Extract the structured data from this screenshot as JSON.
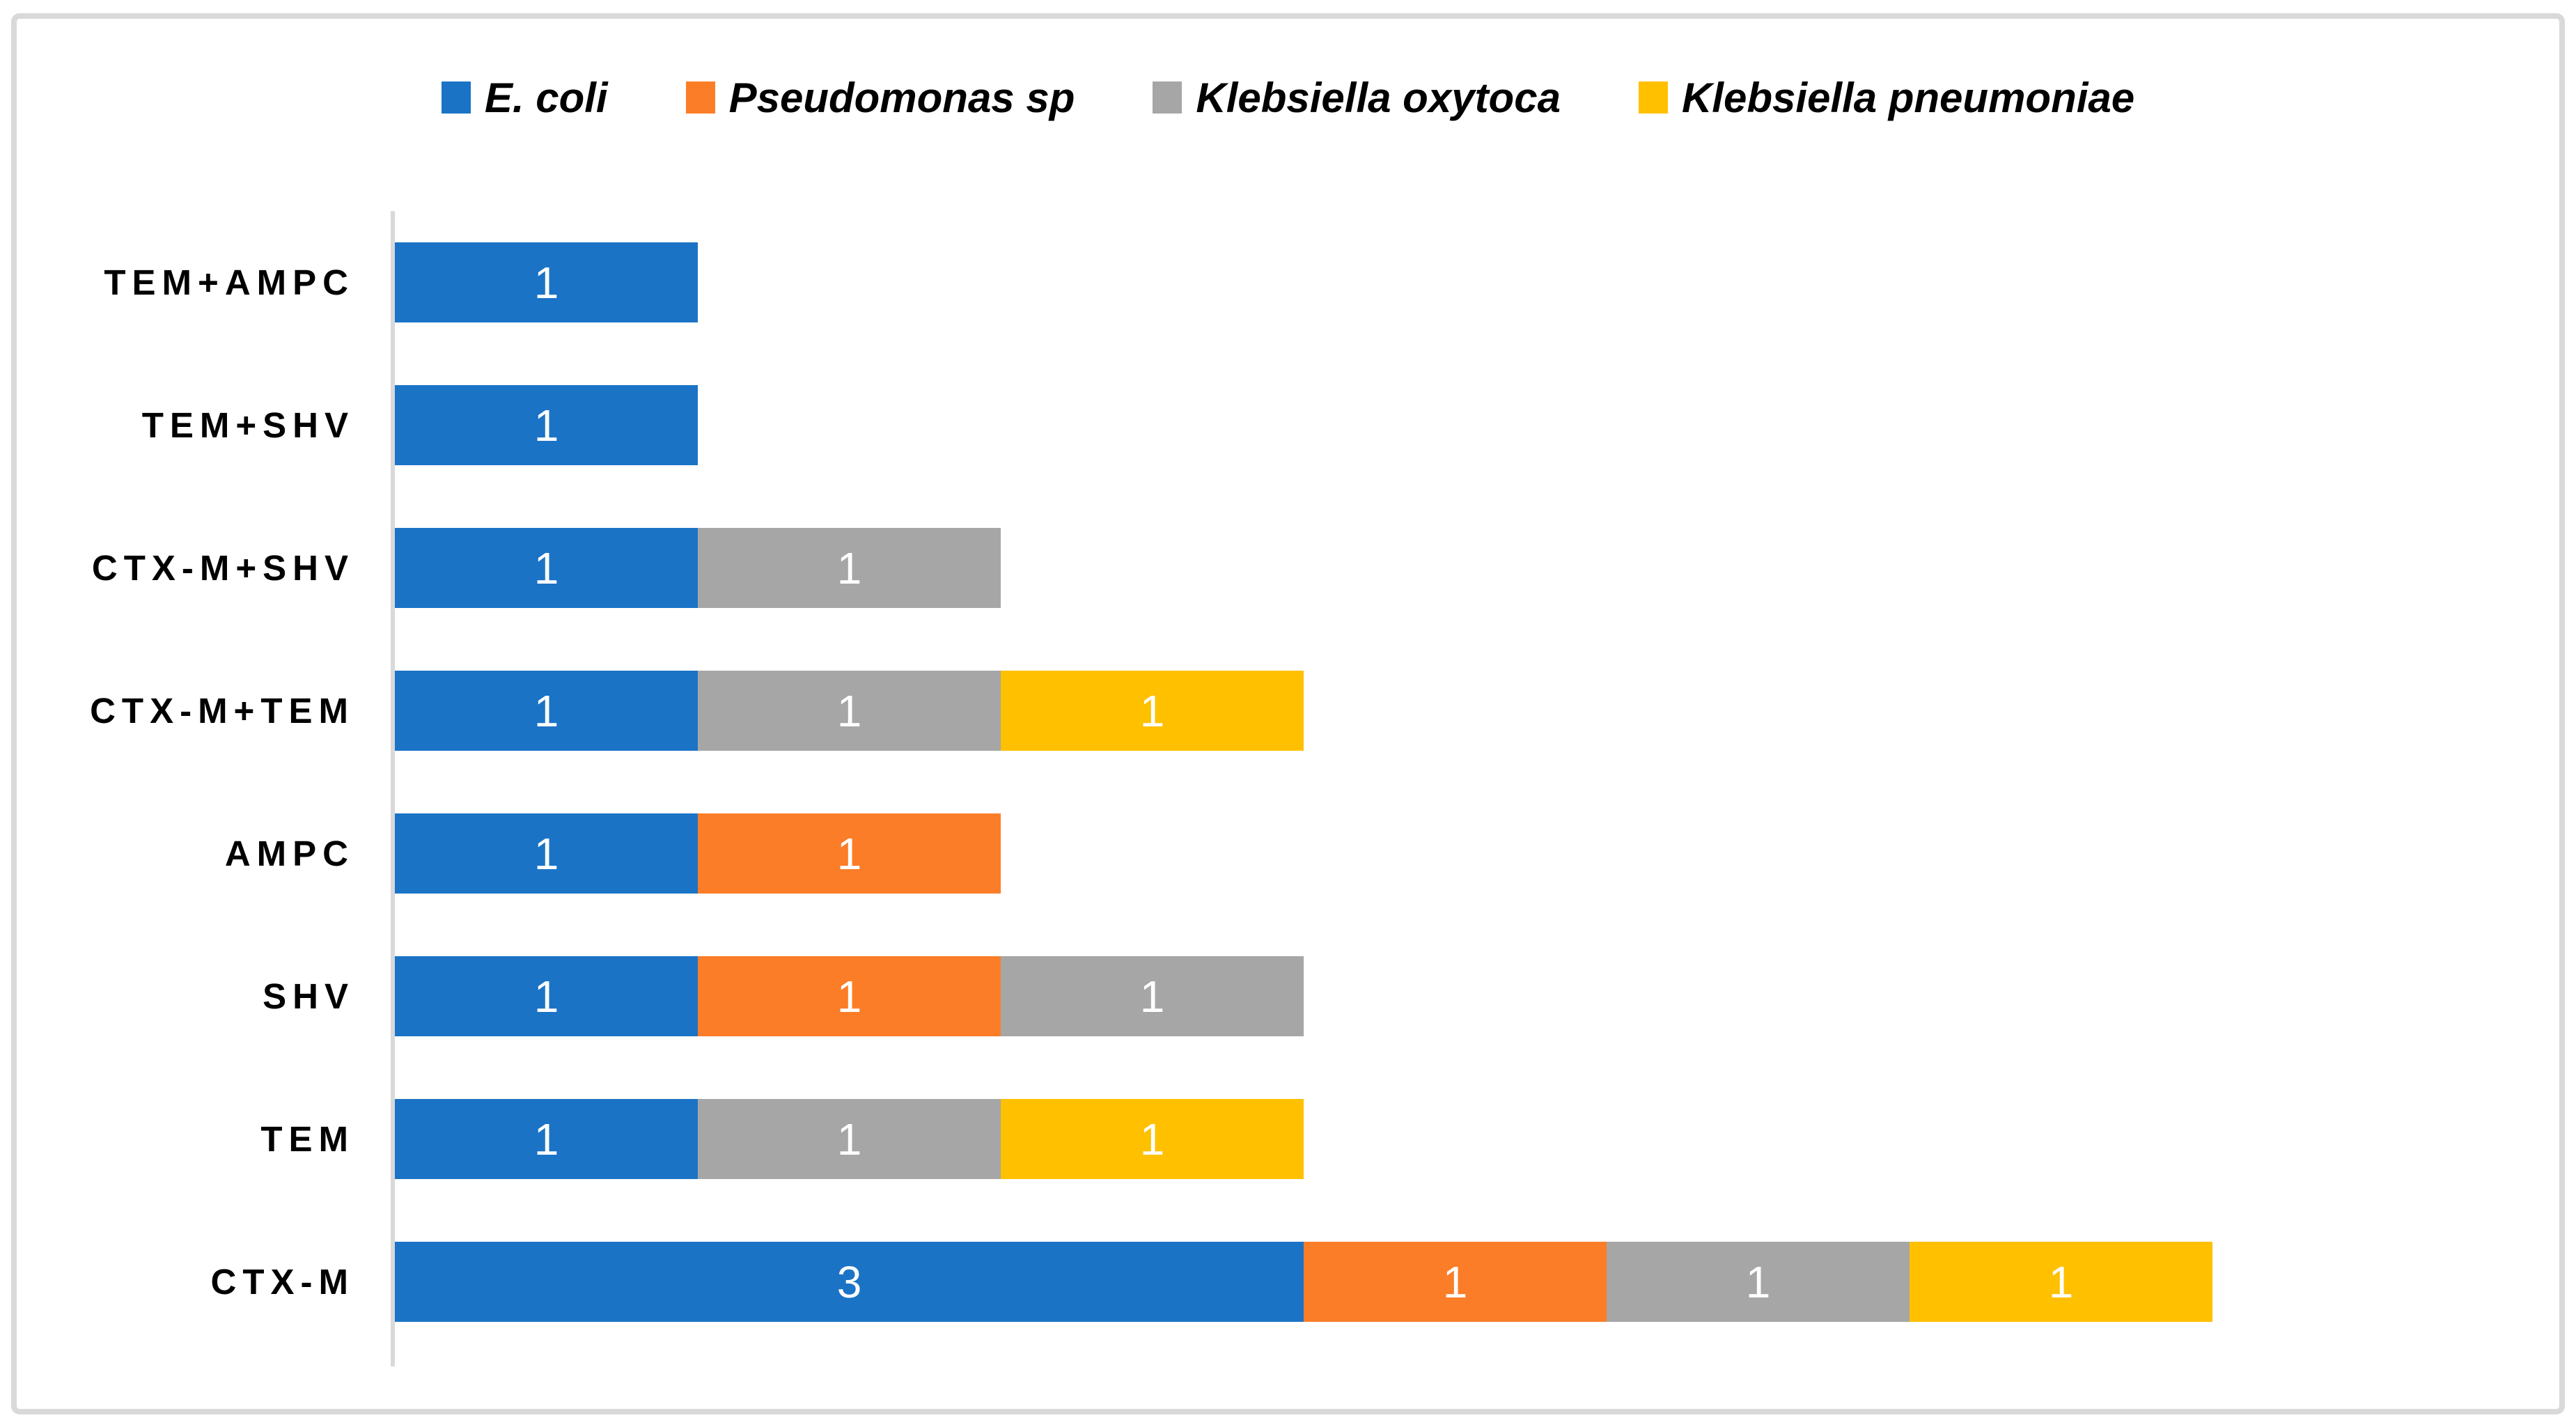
{
  "chart_data": {
    "type": "bar",
    "orientation": "horizontal",
    "stacked": true,
    "title": "",
    "xlabel": "",
    "ylabel": "",
    "categories": [
      "TEM+AMPC",
      "TEM+SHV",
      "CTX-M+SHV",
      "CTX-M+TEM",
      "AMPC",
      "SHV",
      "TEM",
      "CTX-M"
    ],
    "series": [
      {
        "name": "E. coli",
        "color": "#1b73c6",
        "values": [
          1,
          1,
          1,
          1,
          1,
          1,
          1,
          3
        ]
      },
      {
        "name": "Pseudomonas sp",
        "color": "#fb7d28",
        "values": [
          0,
          0,
          0,
          0,
          1,
          1,
          0,
          1
        ]
      },
      {
        "name": "Klebsiella oxytoca",
        "color": "#a6a6a6",
        "values": [
          0,
          0,
          1,
          1,
          0,
          1,
          1,
          1
        ]
      },
      {
        "name": "Klebsiella pneumoniae",
        "color": "#ffc000",
        "values": [
          0,
          0,
          0,
          1,
          0,
          0,
          1,
          1
        ]
      }
    ],
    "category_totals": [
      1,
      1,
      2,
      3,
      2,
      3,
      3,
      6
    ],
    "xlim": [
      0,
      7.1
    ],
    "show_data_labels": true,
    "data_label_color": "#ffffff",
    "legend_position": "top-center",
    "legend_style": "bold-italic",
    "gridlines": false,
    "axis_line_color": "#d9d9d9",
    "frame_border_color": "#d9d9d9",
    "background": "#ffffff"
  }
}
